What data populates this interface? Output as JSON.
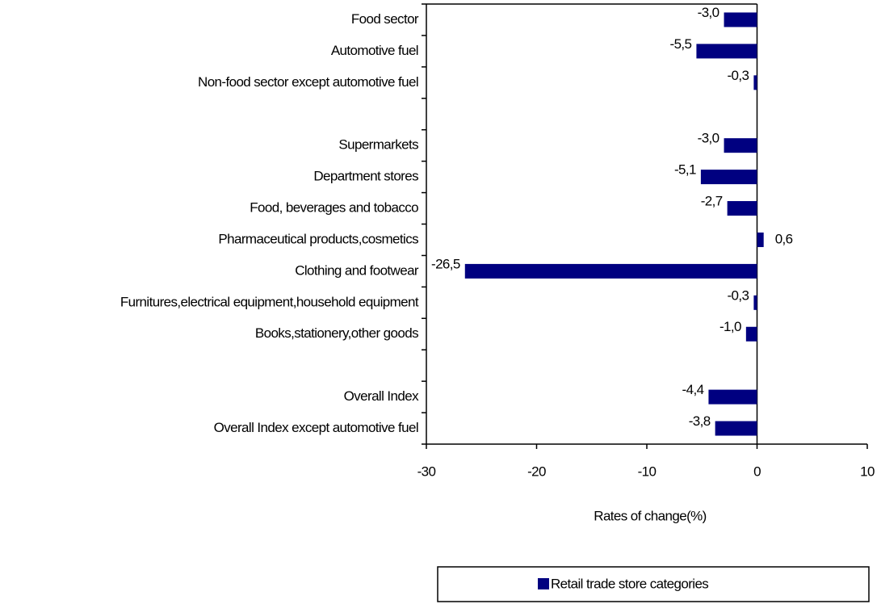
{
  "chart_data": {
    "type": "barh",
    "categories": [
      "Food sector",
      "Automotive fuel",
      "Non-food sector except automotive fuel",
      null,
      "Supermarkets",
      "Department stores",
      "Food, beverages and tobacco",
      "Pharmaceutical products,cosmetics",
      "Clothing and footwear",
      "Furnitures,electrical equipment,household equipment",
      "Books,stationery,other goods",
      null,
      "Overall Index",
      "Overall Index except automotive fuel"
    ],
    "series": [
      {
        "name": "Retail trade store categories",
        "color": "#000080",
        "values": [
          -3.0,
          -5.5,
          -0.3,
          null,
          -3.0,
          -5.1,
          -2.7,
          0.6,
          -26.5,
          -0.3,
          -1.0,
          null,
          -4.4,
          -3.8
        ],
        "value_labels": [
          "-3,0",
          "-5,5",
          "-0,3",
          null,
          "-3,0",
          "-5,1",
          "-2,7",
          "0,6",
          "-26,5",
          "-0,3",
          "-1,0",
          null,
          "-4,4",
          "-3,8"
        ]
      }
    ],
    "xlabel": "Rates of change(%)",
    "xlim": [
      -30,
      10
    ],
    "xticks": [
      -30,
      -20,
      -10,
      0,
      10
    ]
  }
}
